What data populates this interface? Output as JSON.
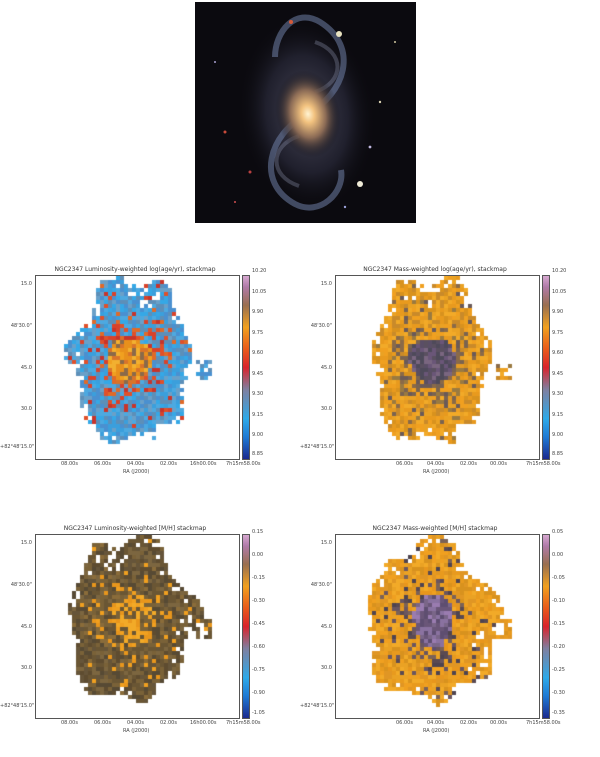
{
  "panels": [
    {
      "title": "NGC2347 Luminosity-weighted log(age/yr), stackmap",
      "xlabel": "RA (J2000)",
      "yticks": [
        "15.0",
        "48'30.0\"",
        "45.0",
        "30.0",
        "+82°48'15.0\""
      ],
      "xticks": [
        "08.00s",
        "06.00s",
        "04.00s",
        "02.00s",
        "16h00.00s",
        "7h15m58.00s"
      ],
      "cticks": [
        "10.20",
        "10.05",
        "9.90",
        "9.75",
        "9.60",
        "9.45",
        "9.30",
        "9.15",
        "9.00",
        "8.85"
      ],
      "cmap": "colorbar-age",
      "style": "age-lum"
    },
    {
      "title": "NGC2347 Mass-weighted log(age/yr), stackmap",
      "xlabel": "RA (J2000)",
      "yticks": [
        "15.0",
        "48'30.0\"",
        "45.0",
        "30.0",
        "+82°48'15.0\""
      ],
      "xticks": [
        "06.00s",
        "04.00s",
        "02.00s",
        "00.00s",
        "7h15m58.00s"
      ],
      "cticks": [
        "10.20",
        "10.05",
        "9.90",
        "9.75",
        "9.60",
        "9.45",
        "9.30",
        "9.15",
        "9.00",
        "8.85"
      ],
      "cmap": "colorbar-age",
      "style": "age-mass"
    },
    {
      "title": "NGC2347 Luminosity-weighted [M/H] stackmap",
      "xlabel": "RA (J2000)",
      "yticks": [
        "15.0",
        "48'30.0\"",
        "45.0",
        "30.0",
        "+82°48'15.0\""
      ],
      "xticks": [
        "08.00s",
        "06.00s",
        "04.00s",
        "02.00s",
        "16h00.00s",
        "7h15m58.00s"
      ],
      "cticks": [
        "0.15",
        "0.00",
        "-0.15",
        "-0.30",
        "-0.45",
        "-0.60",
        "-0.75",
        "-0.90",
        "-1.05"
      ],
      "cmap": "colorbar-metallicity",
      "style": "mh-lum"
    },
    {
      "title": "NGC2347 Mass-weighted [M/H] stackmap",
      "xlabel": "RA (J2000)",
      "yticks": [
        "15.0",
        "48'30.0\"",
        "45.0",
        "30.0",
        "+82°48'15.0\""
      ],
      "xticks": [
        "06.00s",
        "04.00s",
        "02.00s",
        "00.00s",
        "7h15m58.00s"
      ],
      "cticks": [
        "0.05",
        "0.00",
        "-0.05",
        "-0.10",
        "-0.15",
        "-0.20",
        "-0.25",
        "-0.30",
        "-0.35"
      ],
      "cmap": "colorbar-metallicity",
      "style": "mh-mass"
    }
  ]
}
